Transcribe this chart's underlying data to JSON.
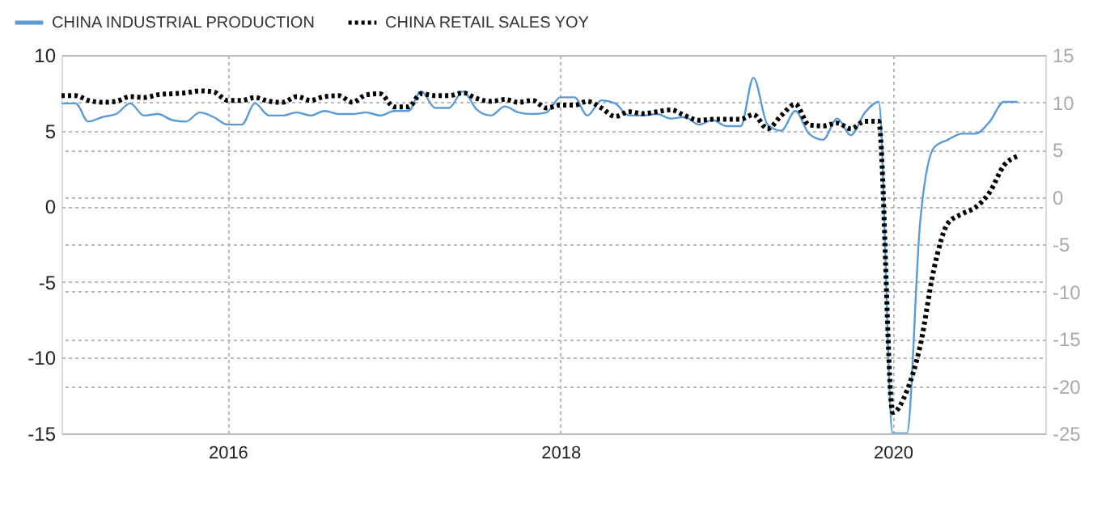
{
  "chart_data": {
    "type": "line",
    "x": [
      "2015-01",
      "2015-02",
      "2015-03",
      "2015-04",
      "2015-05",
      "2015-06",
      "2015-07",
      "2015-08",
      "2015-09",
      "2015-10",
      "2015-11",
      "2015-12",
      "2016-01",
      "2016-02",
      "2016-03",
      "2016-04",
      "2016-05",
      "2016-06",
      "2016-07",
      "2016-08",
      "2016-09",
      "2016-10",
      "2016-11",
      "2016-12",
      "2017-01",
      "2017-02",
      "2017-03",
      "2017-04",
      "2017-05",
      "2017-06",
      "2017-07",
      "2017-08",
      "2017-09",
      "2017-10",
      "2017-11",
      "2017-12",
      "2018-01",
      "2018-02",
      "2018-03",
      "2018-04",
      "2018-05",
      "2018-06",
      "2018-07",
      "2018-08",
      "2018-09",
      "2018-10",
      "2018-11",
      "2018-12",
      "2019-01",
      "2019-02",
      "2019-03",
      "2019-04",
      "2019-05",
      "2019-06",
      "2019-07",
      "2019-08",
      "2019-09",
      "2019-10",
      "2019-11",
      "2019-12",
      "2020-01",
      "2020-02",
      "2020-03",
      "2020-04",
      "2020-05",
      "2020-06",
      "2020-07",
      "2020-08",
      "2020-09",
      "2020-10"
    ],
    "series": [
      {
        "name": "CHINA INDUSTRIAL PRODUCTION",
        "color": "#5b9bd5",
        "line_style": "solid",
        "values": [
          6.8,
          6.8,
          5.6,
          5.9,
          6.1,
          6.8,
          6.0,
          6.1,
          5.7,
          5.6,
          6.2,
          5.9,
          5.4,
          5.4,
          6.8,
          6.0,
          6.0,
          6.2,
          6.0,
          6.3,
          6.1,
          6.1,
          6.2,
          6.0,
          6.3,
          6.3,
          7.6,
          6.5,
          6.5,
          7.6,
          6.4,
          6.0,
          6.6,
          6.2,
          6.1,
          6.2,
          7.2,
          7.2,
          6.0,
          7.0,
          6.8,
          6.0,
          6.0,
          6.1,
          5.8,
          5.9,
          5.4,
          5.7,
          5.3,
          5.3,
          8.5,
          5.4,
          5.0,
          6.3,
          4.8,
          4.4,
          5.8,
          4.7,
          6.2,
          6.9,
          -15,
          -15,
          -1.1,
          3.9,
          4.4,
          4.8,
          4.8,
          5.6,
          6.9,
          6.9
        ]
      },
      {
        "name": "CHINA RETAIL SALES YOY",
        "color": "#000000",
        "line_style": "dotted",
        "axis": "y2",
        "values": [
          10.7,
          10.7,
          10.2,
          10.0,
          10.1,
          10.6,
          10.5,
          10.8,
          10.9,
          11.0,
          11.2,
          11.1,
          10.2,
          10.2,
          10.5,
          10.1,
          10.0,
          10.6,
          10.2,
          10.6,
          10.7,
          10.0,
          10.8,
          10.9,
          9.5,
          9.5,
          10.9,
          10.7,
          10.7,
          11.0,
          10.4,
          10.1,
          10.3,
          10.0,
          10.2,
          9.4,
          9.7,
          9.7,
          10.1,
          9.4,
          8.5,
          9.0,
          8.8,
          9.0,
          9.2,
          8.6,
          8.1,
          8.2,
          8.2,
          8.2,
          8.7,
          7.2,
          8.6,
          9.8,
          7.6,
          7.5,
          7.8,
          7.2,
          8.0,
          8.0,
          -22.8,
          -20.5,
          -15.8,
          -7.5,
          -2.8,
          -1.8,
          -1.1,
          0.5,
          3.3,
          4.3
        ]
      }
    ],
    "xlim": [
      "2015-01",
      "2020-12"
    ],
    "xticks": [
      "2016",
      "2018",
      "2020"
    ],
    "ylim": [
      -15,
      10
    ],
    "yticks": [
      -15,
      -10,
      -5,
      0,
      5,
      10
    ],
    "y2lim": [
      -25,
      15
    ],
    "y2ticks": [
      -25,
      -20,
      -15,
      -10,
      -5,
      0,
      5,
      10,
      15
    ],
    "grid": true,
    "legend": "top left"
  }
}
